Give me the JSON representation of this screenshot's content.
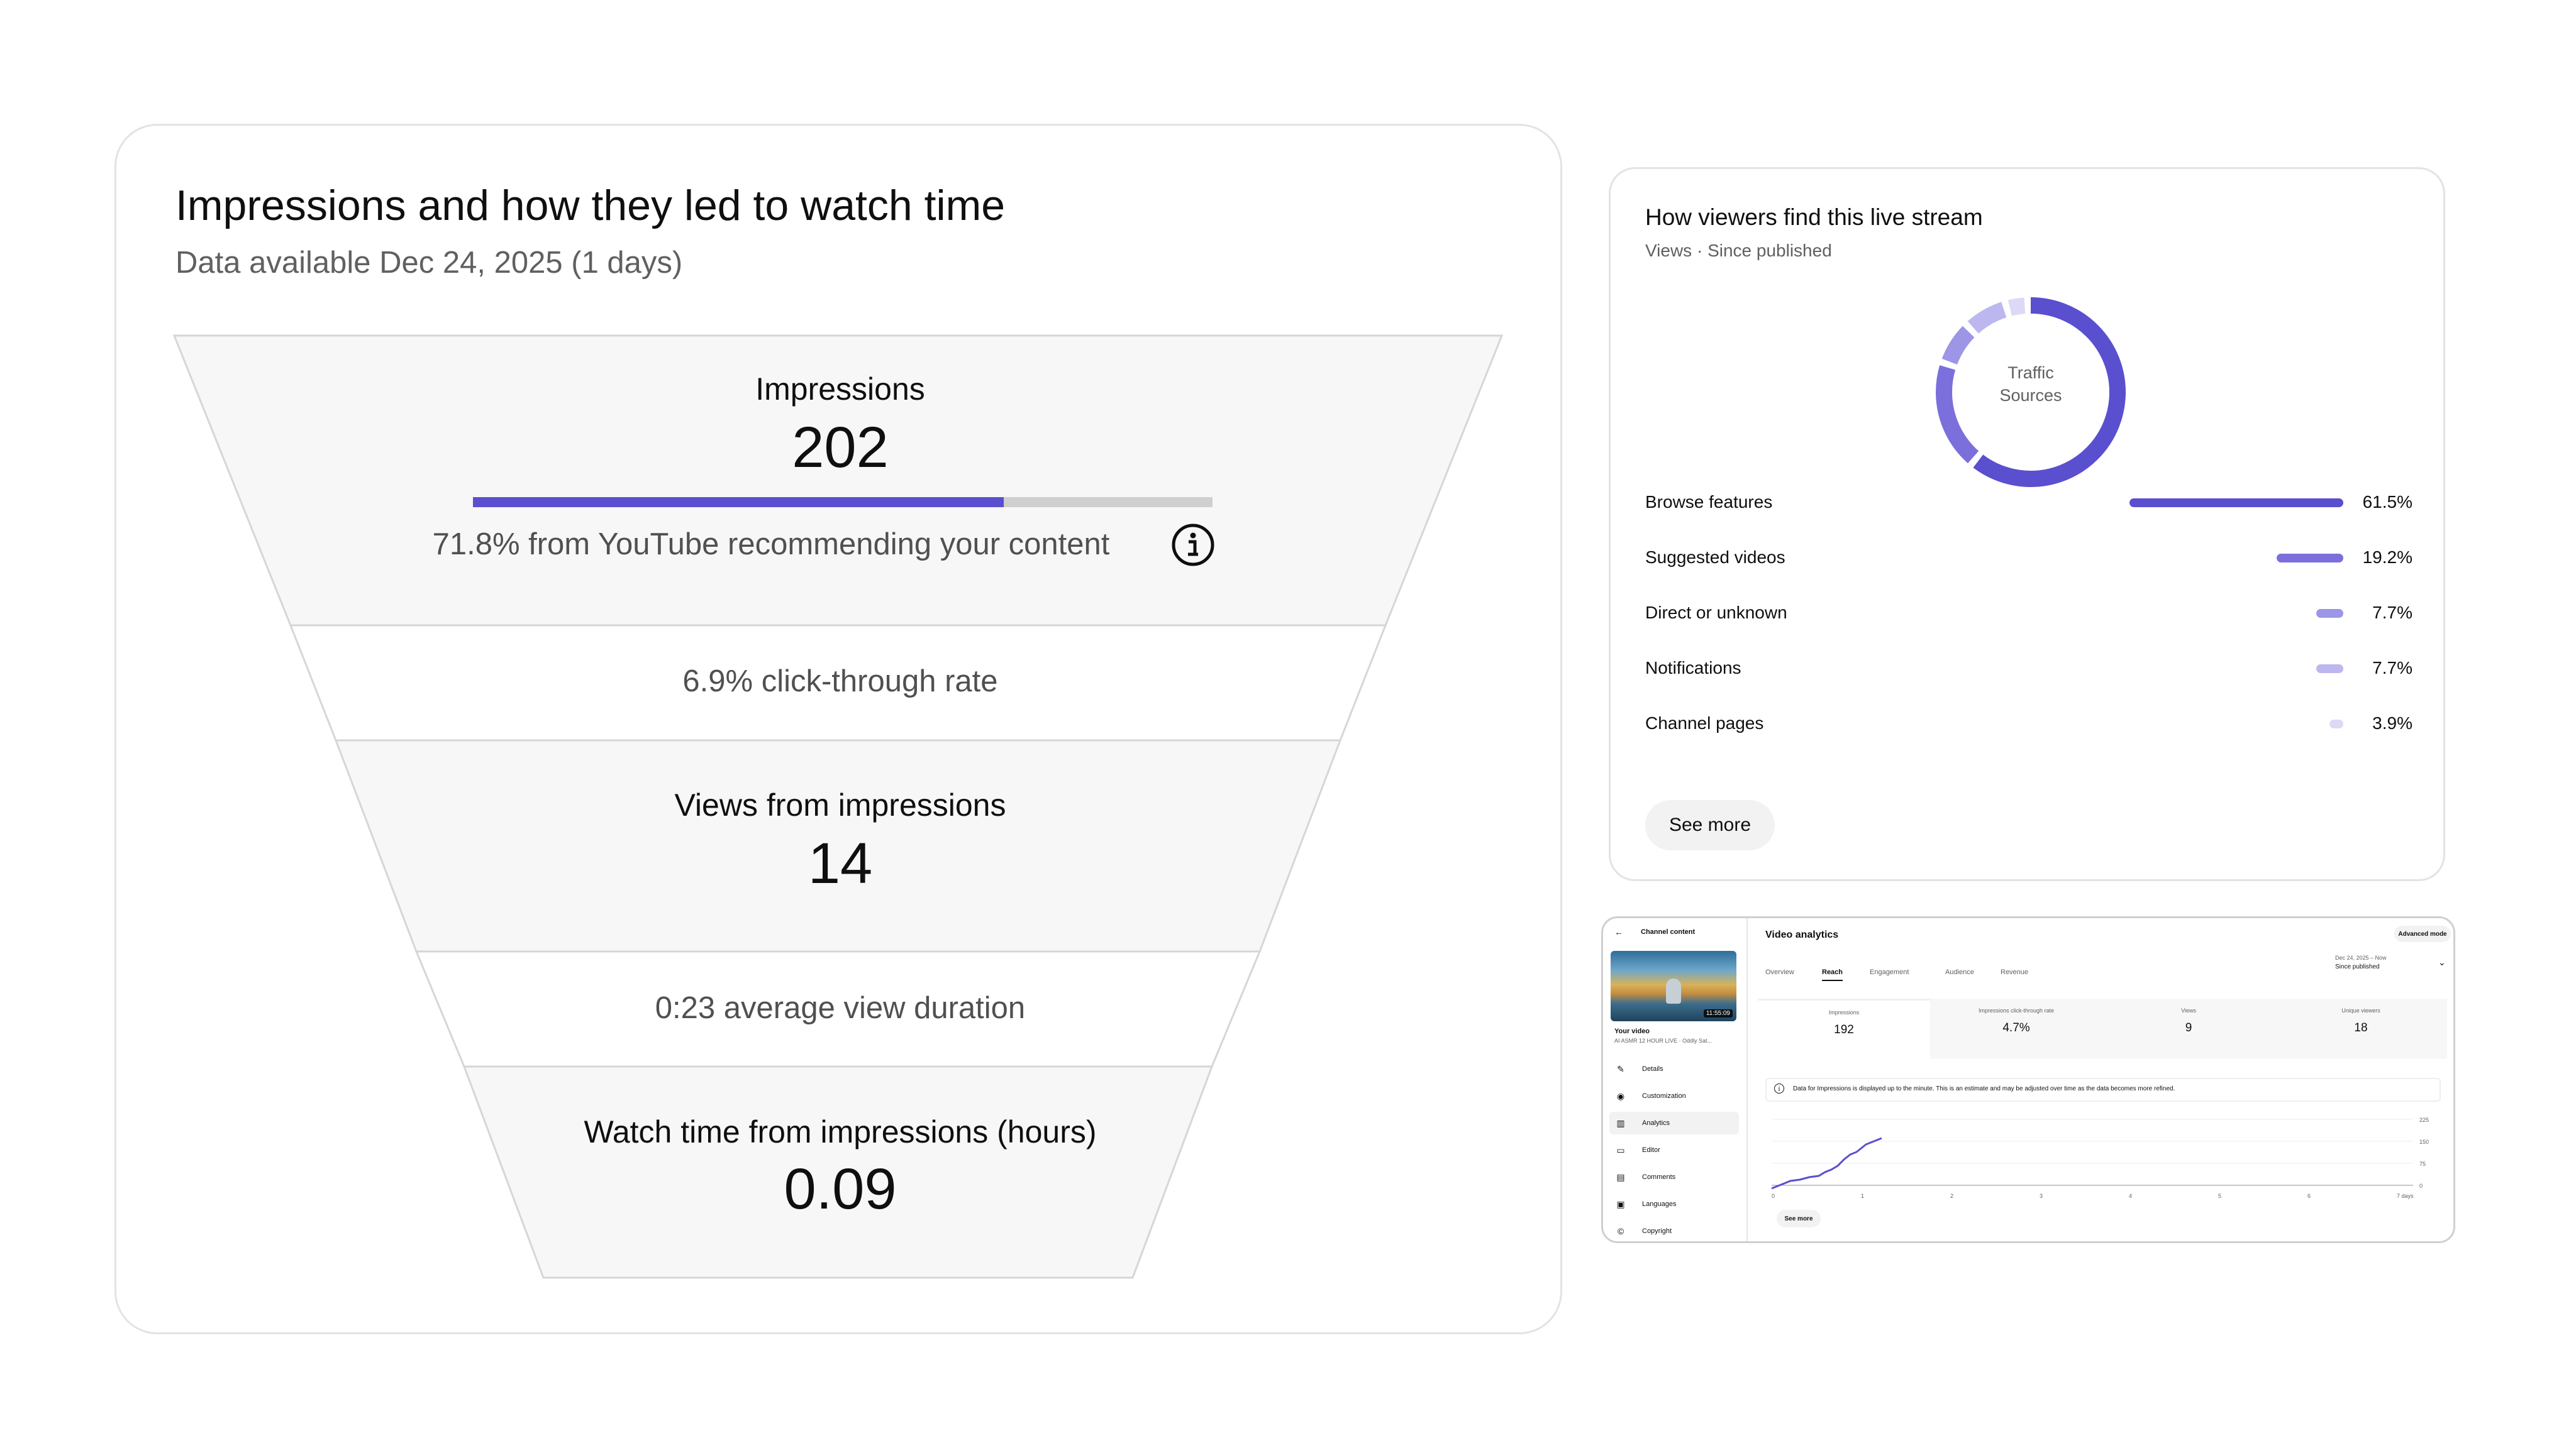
{
  "funnel": {
    "title": "Impressions and how they led to watch time",
    "subtitle": "Data available Dec 24, 2025 (1 days)",
    "impressions_label": "Impressions",
    "impressions_value": "202",
    "recommend_fraction": 0.718,
    "recommend_text": "71.8% from YouTube recommending your content",
    "ctr_text": "6.9% click-through rate",
    "views_label": "Views from impressions",
    "views_value": "14",
    "avg_duration_text": "0:23 average view duration",
    "watch_time_label": "Watch time from impressions (hours)",
    "watch_time_value": "0.09",
    "info_icon": "info-icon"
  },
  "traffic": {
    "title": "How viewers find this live stream",
    "subtitle": "Views · Since published",
    "donut_label_line1": "Traffic",
    "donut_label_line2": "Sources",
    "sources": [
      {
        "name": "Browse features",
        "value": "61.5%",
        "pct": 61.5,
        "color": "#5a4fcf"
      },
      {
        "name": "Suggested videos",
        "value": "19.2%",
        "pct": 19.2,
        "color": "#7b6fdc"
      },
      {
        "name": "Direct or unknown",
        "value": "7.7%",
        "pct": 7.7,
        "color": "#9d95e6"
      },
      {
        "name": "Notifications",
        "value": "7.7%",
        "pct": 7.7,
        "color": "#bdb7ef"
      },
      {
        "name": "Channel pages",
        "value": "3.9%",
        "pct": 3.9,
        "color": "#dcd9f6"
      }
    ],
    "see_more": "See more"
  },
  "studio": {
    "back_label": "Channel content",
    "page_title": "Video analytics",
    "advanced_mode": "Advanced mode",
    "thumbnail_duration": "11:55:09",
    "your_video": "Your video",
    "video_title": "AI ASMR 12 HOUR LIVE · Oddly Sat...",
    "nav": [
      {
        "label": "Details",
        "icon": "✎"
      },
      {
        "label": "Customization",
        "icon": "◉"
      },
      {
        "label": "Analytics",
        "icon": "▥"
      },
      {
        "label": "Editor",
        "icon": "▭"
      },
      {
        "label": "Comments",
        "icon": "▤"
      },
      {
        "label": "Languages",
        "icon": "▣"
      },
      {
        "label": "Copyright",
        "icon": "©"
      }
    ],
    "tabs": [
      "Overview",
      "Reach",
      "Engagement",
      "Audience",
      "Revenue"
    ],
    "active_tab": "Reach",
    "date_range": "Dec 24, 2025 – Now",
    "date_label": "Since published",
    "metrics": [
      {
        "label": "Impressions",
        "value": "192"
      },
      {
        "label": "Impressions click-through rate",
        "value": "4.7%"
      },
      {
        "label": "Views",
        "value": "9"
      },
      {
        "label": "Unique viewers",
        "value": "18"
      }
    ],
    "notice": "Data for Impressions is displayed up to the minute. This is an estimate and may be adjusted over time as the data becomes more refined.",
    "chart_x_ticks": [
      "0",
      "1",
      "2",
      "3",
      "4",
      "5",
      "6",
      "7 days"
    ],
    "chart_y_ticks": [
      "225",
      "150",
      "75",
      "0"
    ],
    "see_more": "See more"
  }
}
